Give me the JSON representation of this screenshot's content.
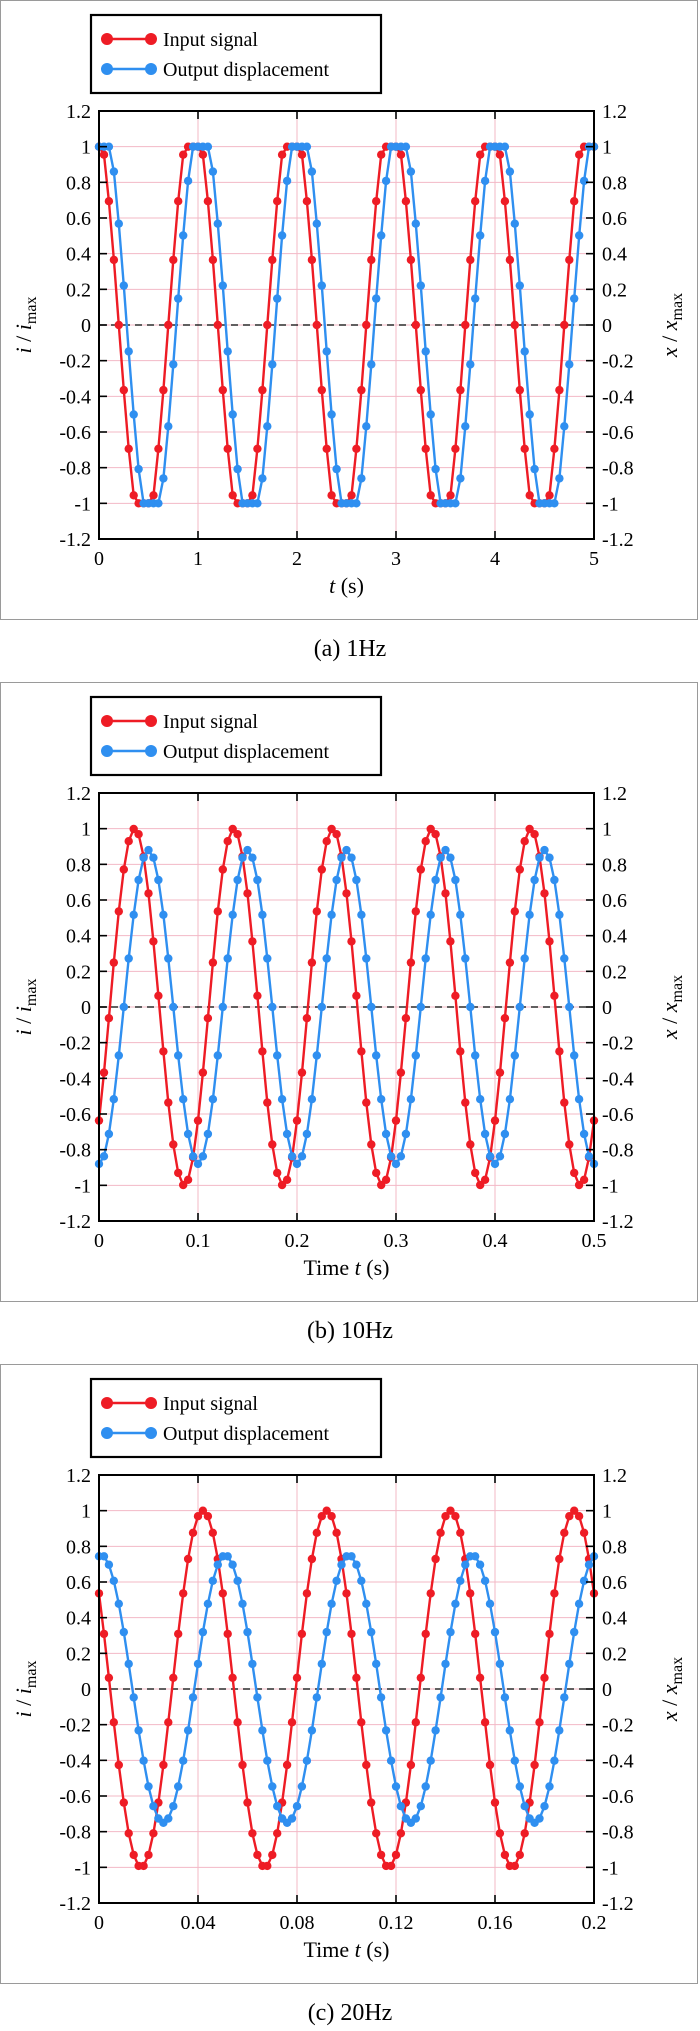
{
  "colors": {
    "input": "#ee1c25",
    "output": "#2f8ff0",
    "grid": "#f3b8c6"
  },
  "chart_data": [
    {
      "type": "line",
      "caption": "(a) 1Hz",
      "xlabel_pre": "",
      "xlabel_var": "t",
      "xlabel_unit": " (s)",
      "ylabel_left_var": "i",
      "ylabel_left_sub": "max",
      "ylabel_right_var": "x",
      "ylabel_right_sub": "max",
      "xlim": [
        0,
        5
      ],
      "ylim": [
        -1.2,
        1.2
      ],
      "x_ticks": [
        "0",
        "1",
        "2",
        "3",
        "4",
        "5"
      ],
      "y_ticks": [
        "1.2",
        "1",
        "0.8",
        "0.6",
        "0.4",
        "0.2",
        "0",
        "-0.2",
        "-0.4",
        "-0.6",
        "-0.8",
        "-1",
        "-1.2"
      ],
      "legend_placement": "top-left",
      "reference_line_y": 0,
      "series": [
        {
          "name": "Input signal",
          "color_key": "input",
          "frequency_hz": 1,
          "amplitude": 1,
          "peak_time": 0.95,
          "sample_interval": 0.05,
          "flat_top": true
        },
        {
          "name": "Output displacement",
          "color_key": "output",
          "frequency_hz": 1,
          "amplitude": 1,
          "peak_time": 0.03,
          "sample_interval": 0.05,
          "flat_top": true
        }
      ]
    },
    {
      "type": "line",
      "caption": "(b) 10Hz",
      "xlabel_pre": "Time ",
      "xlabel_var": "t",
      "xlabel_unit": " (s)",
      "ylabel_left_var": "i",
      "ylabel_left_sub": "max",
      "ylabel_right_var": "x",
      "ylabel_right_sub": "max",
      "xlim": [
        0,
        0.5
      ],
      "ylim": [
        -1.2,
        1.2
      ],
      "x_ticks": [
        "0",
        "0.1",
        "0.2",
        "0.3",
        "0.4",
        "0.5"
      ],
      "y_ticks": [
        "1.2",
        "1",
        "0.8",
        "0.6",
        "0.4",
        "0.2",
        "0",
        "-0.2",
        "-0.4",
        "-0.6",
        "-0.8",
        "-1",
        "-1.2"
      ],
      "legend_placement": "top-left",
      "reference_line_y": 0,
      "series": [
        {
          "name": "Input signal",
          "color_key": "input",
          "frequency_hz": 10,
          "amplitude": 1,
          "peak_time": 0.036,
          "sample_interval": 0.005,
          "flat_top": false
        },
        {
          "name": "Output displacement",
          "color_key": "output",
          "frequency_hz": 10,
          "amplitude": 0.88,
          "peak_time": 0.05,
          "sample_interval": 0.005,
          "flat_top": false
        }
      ]
    },
    {
      "type": "line",
      "caption": "(c) 20Hz",
      "xlabel_pre": "Time ",
      "xlabel_var": "t",
      "xlabel_unit": " (s)",
      "ylabel_left_var": "i",
      "ylabel_left_sub": "max",
      "ylabel_right_var": "x",
      "ylabel_right_sub": "max",
      "xlim": [
        0,
        0.2
      ],
      "ylim": [
        -1.2,
        1.2
      ],
      "x_ticks": [
        "0",
        "0.04",
        "0.08",
        "0.12",
        "0.16",
        "0.2"
      ],
      "y_ticks": [
        "1.2",
        "1",
        "0.8",
        "0.6",
        "0.4",
        "0.2",
        "0",
        "-0.2",
        "-0.4",
        "-0.6",
        "-0.8",
        "-1",
        "-1.2"
      ],
      "legend_placement": "top-left",
      "reference_line_y": 0,
      "series": [
        {
          "name": "Input signal",
          "color_key": "input",
          "frequency_hz": 20,
          "amplitude": 1,
          "peak_time": 0.042,
          "sample_interval": 0.002,
          "flat_top": false
        },
        {
          "name": "Output displacement",
          "color_key": "output",
          "frequency_hz": 20,
          "amplitude": 0.75,
          "peak_time": 0.051,
          "sample_interval": 0.002,
          "flat_top": false
        }
      ]
    }
  ]
}
